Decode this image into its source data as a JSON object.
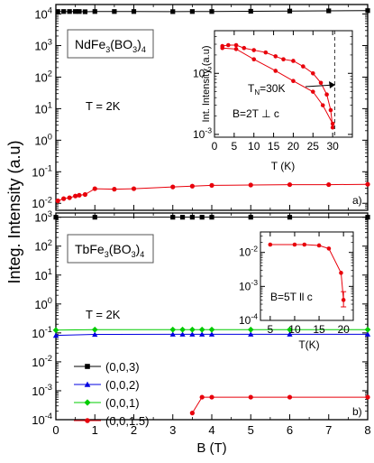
{
  "figure": {
    "ylabel": "Integ. Intensity (a.u)",
    "xlabel": "B (T)"
  },
  "chart_data": [
    {
      "panel": "a",
      "panel_label": "a)",
      "type": "line",
      "compound": {
        "base": "NdFe",
        "s1": "3",
        "mid": "(BO",
        "s2": "3",
        "end": ")",
        "s3": "4"
      },
      "temperature_text": "T = 2K",
      "xlim": [
        0,
        8
      ],
      "ylim": [
        0.006,
        20000
      ],
      "yscale": "log",
      "yticks": [
        {
          "v": 0.01,
          "label": "10",
          "sup": "-2"
        },
        {
          "v": 0.1,
          "label": "10",
          "sup": "-1"
        },
        {
          "v": 1,
          "label": "10",
          "sup": "0"
        },
        {
          "v": 10,
          "label": "10",
          "sup": "1"
        },
        {
          "v": 100,
          "label": "10",
          "sup": "2"
        },
        {
          "v": 1000,
          "label": "10",
          "sup": "3"
        },
        {
          "v": 10000,
          "label": "10",
          "sup": "4"
        }
      ],
      "series": [
        {
          "color": "#000000",
          "marker": "square",
          "x": [
            0.05,
            0.2,
            0.35,
            0.5,
            0.6,
            0.75,
            1.0,
            1.5,
            2.0,
            3.0,
            3.5,
            4.0,
            5.0,
            6.0,
            7.0,
            8.0
          ],
          "y": [
            12000,
            12000,
            12000,
            12000,
            12000,
            11800,
            12000,
            12000,
            12000,
            11900,
            12000,
            12000,
            12200,
            12400,
            12600,
            12800
          ]
        },
        {
          "color": "#e8000b",
          "marker": "circle",
          "x": [
            0.05,
            0.2,
            0.35,
            0.5,
            0.6,
            0.75,
            1.0,
            1.5,
            2.0,
            3.0,
            3.5,
            4.0,
            5.0,
            6.0,
            7.0,
            8.0
          ],
          "y": [
            0.012,
            0.014,
            0.015,
            0.017,
            0.018,
            0.019,
            0.029,
            0.028,
            0.029,
            0.033,
            0.035,
            0.037,
            0.038,
            0.039,
            0.039,
            0.04
          ]
        }
      ],
      "inset": {
        "xlabel": "T (K)",
        "ylabel": "Int. Intensity (a.u)",
        "xlim": [
          0,
          35
        ],
        "ylim": [
          0.0009,
          0.05
        ],
        "yscale": "log",
        "xticks": [
          0,
          5,
          10,
          15,
          20,
          25,
          30
        ],
        "yticks": [
          {
            "v": 0.001,
            "label": "10",
            "sup": "-3"
          },
          {
            "v": 0.01,
            "label": "10",
            "sup": "-2"
          }
        ],
        "dashed_x": 30.5,
        "tn": {
          "main": "T",
          "sub": "N",
          "value": "=30K"
        },
        "field_text": "B=2T ⊥ c",
        "series": [
          {
            "color": "#e8000b",
            "marker": "circle",
            "x": [
              2,
              3.5,
              5.5,
              7.5,
              10,
              13,
              15.5,
              17.5,
              20,
              22.5,
              25,
              27,
              28.5,
              29.5,
              30
            ],
            "y": [
              0.028,
              0.029,
              0.029,
              0.026,
              0.024,
              0.022,
              0.019,
              0.017,
              0.016,
              0.013,
              0.01,
              0.007,
              0.0045,
              0.0025,
              0.0013
            ]
          },
          {
            "color": "#e8000b",
            "marker": "circle",
            "x": [
              2,
              5.5,
              10,
              15.5,
              20,
              25,
              27.5,
              30
            ],
            "y": [
              0.026,
              0.025,
              0.017,
              0.011,
              0.0075,
              0.005,
              0.003,
              0.0015
            ]
          }
        ]
      }
    },
    {
      "panel": "b",
      "panel_label": "b)",
      "type": "line",
      "compound": {
        "base": "TbFe",
        "s1": "3",
        "mid": "(BO",
        "s2": "3",
        "end": ")",
        "s3": "4"
      },
      "temperature_text": "T = 2K",
      "xlim": [
        0,
        8
      ],
      "xticks": [
        0,
        1,
        2,
        3,
        4,
        5,
        6,
        7,
        8
      ],
      "ylim": [
        0.0001,
        1400
      ],
      "yscale": "log",
      "yticks": [
        {
          "v": 0.0001,
          "label": "10",
          "sup": "-4"
        },
        {
          "v": 0.001,
          "label": "10",
          "sup": "-3"
        },
        {
          "v": 0.01,
          "label": "10",
          "sup": "-2"
        },
        {
          "v": 0.1,
          "label": "10",
          "sup": "-1"
        },
        {
          "v": 1,
          "label": "10",
          "sup": "0"
        },
        {
          "v": 10,
          "label": "10",
          "sup": "1"
        },
        {
          "v": 100,
          "label": "10",
          "sup": "2"
        },
        {
          "v": 1000,
          "label": "10",
          "sup": "3"
        }
      ],
      "series": [
        {
          "name": "(0,0,3)",
          "color": "#000000",
          "marker": "square",
          "x": [
            0,
            1,
            3,
            3.25,
            3.5,
            3.75,
            4,
            5,
            6,
            8
          ],
          "y": [
            1000,
            1000,
            1000,
            1000,
            1000,
            1000,
            1000,
            1000,
            1000,
            1000
          ]
        },
        {
          "name": "(0,0,2)",
          "color": "#0000e0",
          "marker": "triangle",
          "x": [
            0,
            1,
            3,
            3.25,
            3.5,
            3.75,
            4,
            5,
            6,
            8
          ],
          "y": [
            0.082,
            0.089,
            0.09,
            0.09,
            0.09,
            0.09,
            0.09,
            0.09,
            0.09,
            0.09
          ]
        },
        {
          "name": "(0,0,1)",
          "color": "#00cc00",
          "marker": "diamond",
          "x": [
            0,
            1,
            3,
            3.25,
            3.5,
            3.75,
            4,
            5,
            6,
            8
          ],
          "y": [
            0.125,
            0.13,
            0.13,
            0.13,
            0.13,
            0.13,
            0.13,
            0.13,
            0.13,
            0.13
          ]
        },
        {
          "name": "(0,0,1.5)",
          "color": "#e8000b",
          "marker": "circle",
          "x": [
            3.5,
            3.75,
            4,
            5,
            6,
            8
          ],
          "y": [
            0.00017,
            0.0006,
            0.0006,
            0.0006,
            0.0006,
            0.0006
          ]
        }
      ],
      "inset": {
        "xlabel": "T(K)",
        "xlim": [
          3,
          22
        ],
        "ylim": [
          0.0001,
          0.04
        ],
        "yscale": "log",
        "xticks": [
          5,
          10,
          15,
          20
        ],
        "yticks": [
          {
            "v": 0.0001,
            "label": "10",
            "sup": "-4"
          },
          {
            "v": 0.001,
            "label": "10",
            "sup": "-3"
          },
          {
            "v": 0.01,
            "label": "10",
            "sup": "-2"
          }
        ],
        "field_text": "B=5T ll c",
        "series": [
          {
            "color": "#e8000b",
            "marker": "circle",
            "x": [
              5,
              10,
              12,
              15,
              17,
              19.5,
              20
            ],
            "y": [
              0.017,
              0.017,
              0.017,
              0.016,
              0.013,
              0.0025,
              0.0004
            ],
            "err_index": 6,
            "err_low": 0.00025,
            "err_high": 0.0007
          }
        ]
      }
    }
  ]
}
